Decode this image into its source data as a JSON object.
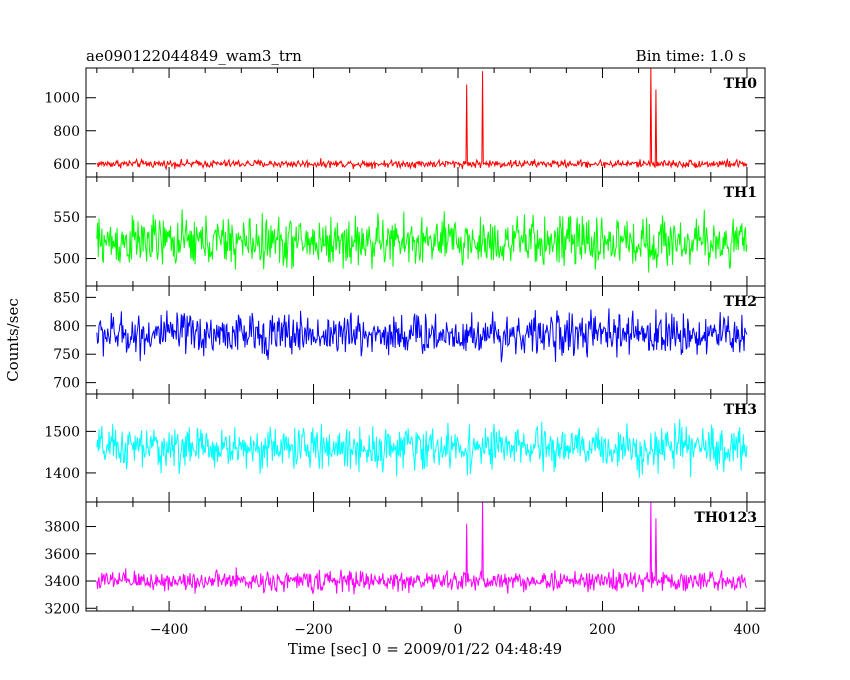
{
  "header": {
    "title": "ae090122044849_wam3_trn",
    "bin_time": "Bin time: 1.0 s"
  },
  "axes": {
    "ylabel": "Counts/sec",
    "xlabel": "Time [sec] 0 = 2009/01/22 04:48:49"
  },
  "chart_data": {
    "type": "line",
    "xlim": [
      -515,
      425
    ],
    "x_start": -500,
    "x_end": 400,
    "x_step": 1,
    "x_ticks": [
      -400,
      -200,
      0,
      200,
      400
    ],
    "x_tick_labels": [
      "−400",
      "−200",
      "0",
      "200",
      "400"
    ],
    "series": [
      {
        "name": "TH0",
        "color": "#ff0000",
        "ylim": [
          520,
          1180
        ],
        "y_ticks": [
          600,
          800,
          1000
        ],
        "mean": 600,
        "noise_amplitude": 35,
        "spikes": [
          {
            "x": 12,
            "value": 1080
          },
          {
            "x": 34,
            "value": 1160
          },
          {
            "x": 267,
            "value": 1190
          },
          {
            "x": 274,
            "value": 1050
          }
        ]
      },
      {
        "name": "TH1",
        "color": "#00ff00",
        "ylim": [
          467,
          598
        ],
        "y_ticks": [
          500,
          550
        ],
        "mean": 520,
        "noise_amplitude": 45,
        "spikes": []
      },
      {
        "name": "TH2",
        "color": "#0000ff",
        "ylim": [
          680,
          870
        ],
        "y_ticks": [
          700,
          750,
          800,
          850
        ],
        "mean": 785,
        "noise_amplitude": 55,
        "spikes": []
      },
      {
        "name": "TH3",
        "color": "#00ffff",
        "ylim": [
          1330,
          1590
        ],
        "y_ticks": [
          1400,
          1500
        ],
        "mean": 1460,
        "noise_amplitude": 75,
        "spikes": []
      },
      {
        "name": "TH0123",
        "color": "#ff00ff",
        "ylim": [
          3180,
          3980
        ],
        "y_ticks": [
          3200,
          3400,
          3600,
          3800
        ],
        "mean": 3400,
        "noise_amplitude": 110,
        "spikes": [
          {
            "x": 12,
            "value": 3820
          },
          {
            "x": 34,
            "value": 4000
          },
          {
            "x": 267,
            "value": 3980
          },
          {
            "x": 274,
            "value": 3860
          }
        ]
      }
    ]
  }
}
